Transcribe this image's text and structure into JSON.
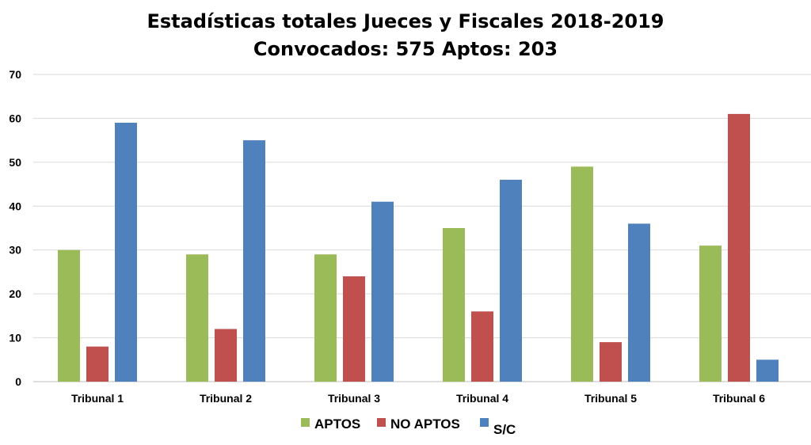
{
  "chart_data": {
    "type": "bar",
    "title": "Estadísticas totales Jueces y Fiscales 2018-2019",
    "subtitle": "Convocados: 575 Aptos:  203",
    "categories": [
      "Tribunal 1",
      "Tribunal 2",
      "Tribunal 3",
      "Tribunal 4",
      "Tribunal 5",
      "Tribunal 6"
    ],
    "series": [
      {
        "name": "APTOS",
        "color": "#9BBB59",
        "values": [
          30,
          29,
          29,
          35,
          49,
          31
        ]
      },
      {
        "name": "NO APTOS",
        "color": "#C0504D",
        "values": [
          8,
          12,
          24,
          16,
          9,
          61
        ]
      },
      {
        "name": "S/C",
        "color": "#4F81BD",
        "values": [
          59,
          55,
          41,
          46,
          36,
          5
        ]
      }
    ],
    "ylim": [
      0,
      70
    ],
    "yticks": [
      0,
      10,
      20,
      30,
      40,
      50,
      60,
      70
    ],
    "xlabel": "",
    "ylabel": "",
    "grid": true,
    "legend": "bottom"
  }
}
